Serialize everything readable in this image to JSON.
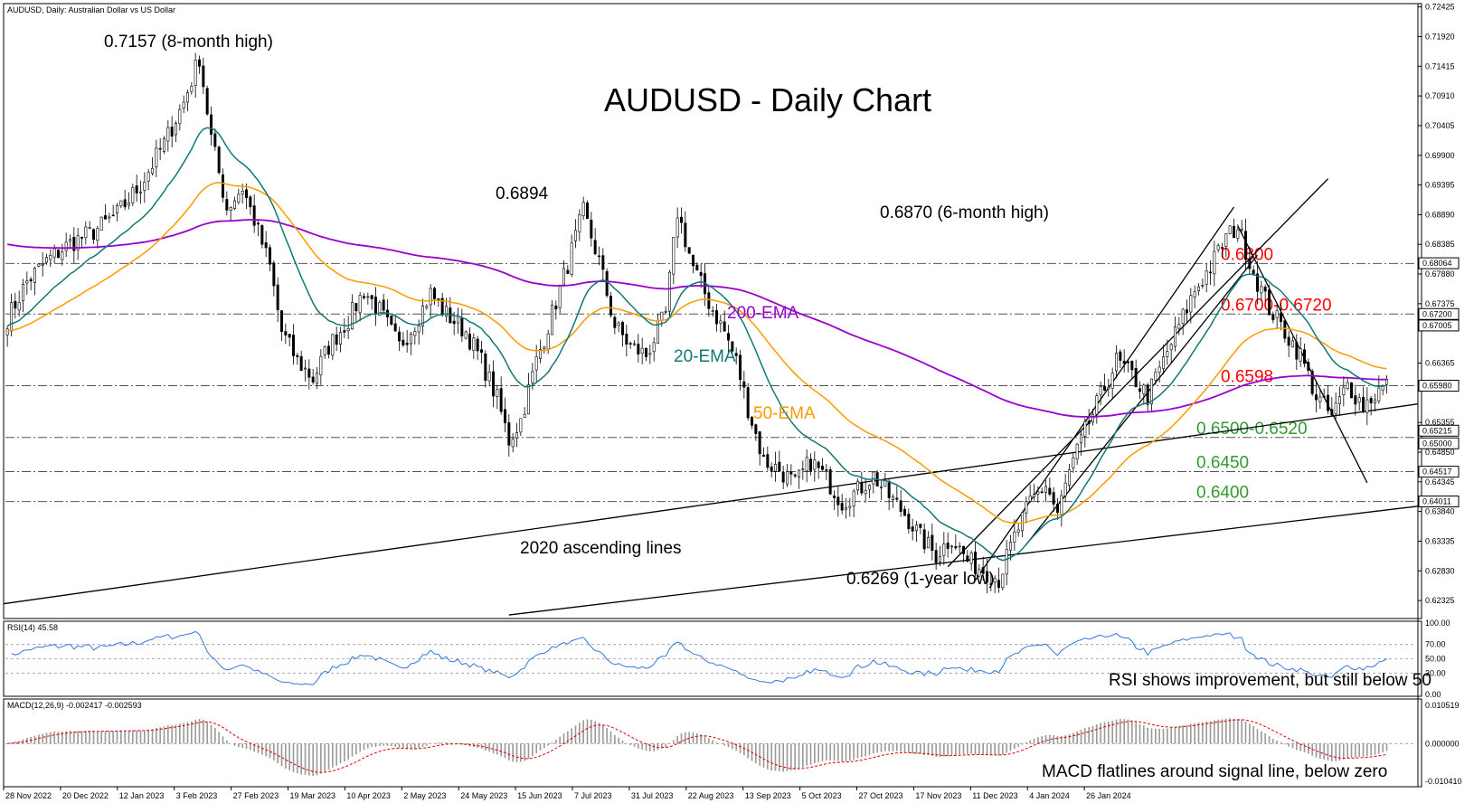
{
  "chart_data": {
    "type": "candlestick",
    "header_label": "AUDUSD, Daily:  Australian Dollar vs US Dollar",
    "title": "AUDUSD -  Daily Chart",
    "x_tick_labels": [
      "28 Nov 2022",
      "20 Dec 2022",
      "12 Jan 2023",
      "3 Feb 2023",
      "27 Feb 2023",
      "19 Mar 2023",
      "10 Apr 2023",
      "2 May 2023",
      "24 May 2023",
      "15 Jun 2023",
      "7 Jul 2023",
      "31 Jul 2023",
      "22 Aug 2023",
      "13 Sep 2023",
      "5 Oct 2023",
      "27 Oct 2023",
      "17 Nov 2023",
      "11 Dec 2023",
      "4 Jan 2024",
      "26 Jan 2024"
    ],
    "y_axis": {
      "ylim": [
        0.6205,
        0.7245
      ],
      "tick_labels": [
        "0.72425",
        "0.71920",
        "0.71415",
        "0.70910",
        "0.70405",
        "0.69900",
        "0.69395",
        "0.68890",
        "0.68385",
        "0.67880",
        "0.67375",
        "0.66365",
        "0.65355",
        "0.64850",
        "0.64345",
        "0.63840",
        "0.63335",
        "0.62830",
        "0.62325"
      ],
      "highlighted_labels": [
        "0.68064",
        "0.67200",
        "0.67005",
        "0.65980",
        "0.65215",
        "0.65000",
        "0.64517",
        "0.64011"
      ]
    },
    "price_path": [
      [
        0,
        0.6712
      ],
      [
        5,
        0.6775
      ],
      [
        10,
        0.681
      ],
      [
        16,
        0.684
      ],
      [
        22,
        0.686
      ],
      [
        28,
        0.689
      ],
      [
        34,
        0.694
      ],
      [
        40,
        0.701
      ],
      [
        45,
        0.708
      ],
      [
        49,
        0.7157
      ],
      [
        52,
        0.702
      ],
      [
        56,
        0.69
      ],
      [
        60,
        0.6935
      ],
      [
        63,
        0.688
      ],
      [
        67,
        0.68
      ],
      [
        70,
        0.669
      ],
      [
        74,
        0.664
      ],
      [
        78,
        0.661
      ],
      [
        82,
        0.6665
      ],
      [
        87,
        0.671
      ],
      [
        91,
        0.676
      ],
      [
        95,
        0.6725
      ],
      [
        100,
        0.6665
      ],
      [
        104,
        0.6705
      ],
      [
        108,
        0.6755
      ],
      [
        112,
        0.672
      ],
      [
        117,
        0.669
      ],
      [
        121,
        0.664
      ],
      [
        125,
        0.6575
      ],
      [
        128,
        0.6505
      ],
      [
        131,
        0.654
      ],
      [
        135,
        0.664
      ],
      [
        139,
        0.672
      ],
      [
        143,
        0.6805
      ],
      [
        147,
        0.6894
      ],
      [
        151,
        0.681
      ],
      [
        155,
        0.67
      ],
      [
        159,
        0.6665
      ],
      [
        163,
        0.665
      ],
      [
        168,
        0.672
      ],
      [
        171,
        0.6894
      ],
      [
        175,
        0.68
      ],
      [
        179,
        0.674
      ],
      [
        183,
        0.669
      ],
      [
        186,
        0.664
      ],
      [
        189,
        0.656
      ],
      [
        193,
        0.647
      ],
      [
        197,
        0.6455
      ],
      [
        201,
        0.643
      ],
      [
        205,
        0.647
      ],
      [
        209,
        0.644
      ],
      [
        213,
        0.64
      ],
      [
        217,
        0.642
      ],
      [
        221,
        0.6445
      ],
      [
        225,
        0.641
      ],
      [
        229,
        0.638
      ],
      [
        233,
        0.634
      ],
      [
        237,
        0.631
      ],
      [
        241,
        0.634
      ],
      [
        245,
        0.63
      ],
      [
        249,
        0.6285
      ],
      [
        253,
        0.6269
      ],
      [
        257,
        0.634
      ],
      [
        261,
        0.64
      ],
      [
        265,
        0.643
      ],
      [
        268,
        0.638
      ],
      [
        271,
        0.645
      ],
      [
        275,
        0.652
      ],
      [
        279,
        0.658
      ],
      [
        283,
        0.664
      ],
      [
        287,
        0.6615
      ],
      [
        291,
        0.658
      ],
      [
        295,
        0.664
      ],
      [
        299,
        0.67
      ],
      [
        303,
        0.676
      ],
      [
        307,
        0.68
      ],
      [
        311,
        0.685
      ],
      [
        314,
        0.687
      ],
      [
        318,
        0.679
      ],
      [
        322,
        0.673
      ],
      [
        326,
        0.669
      ],
      [
        330,
        0.665
      ],
      [
        334,
        0.658
      ],
      [
        338,
        0.6545
      ],
      [
        342,
        0.66
      ],
      [
        346,
        0.6565
      ],
      [
        350,
        0.659
      ],
      [
        352,
        0.6598
      ]
    ],
    "annotations": {
      "high_8m": "0.7157 (8-month high)",
      "high_jun": "0.6894",
      "high_6m": "0.6870 (6-month high)",
      "low_1y": "0.6269 (1-year low)",
      "ascending_lines": "2020 ascending lines",
      "ema200": "200-EMA",
      "ema20": "20-EMA",
      "ema50": "50-EMA"
    },
    "levels": [
      {
        "label": "0.6800",
        "value": 0.6806,
        "color": "#ff0000"
      },
      {
        "label": "0.6700-0.6720",
        "value": 0.672,
        "color": "#ff0000"
      },
      {
        "label": "0.6598",
        "value": 0.6598,
        "color": "#ff0000"
      },
      {
        "label": "0.6500-0.6520",
        "value": 0.651,
        "color": "#339933"
      },
      {
        "label": "0.6450",
        "value": 0.6452,
        "color": "#339933"
      },
      {
        "label": "0.6400",
        "value": 0.6401,
        "color": "#339933"
      }
    ],
    "rsi": {
      "label": "RSI(14) 45.58",
      "tick_labels": [
        "100.00",
        "70.00",
        "50.00",
        "30.00",
        "0.00"
      ],
      "note": "RSI shows improvement, but still below 50"
    },
    "macd": {
      "label": "MACD(12,26,9) -0.002417 -0.002593",
      "tick_labels": [
        "0.010519",
        "0.000000",
        "-0.010410"
      ],
      "note": "MACD flatlines around signal line, below zero"
    },
    "colors": {
      "ema20": "#117777",
      "ema50": "#ff9900",
      "ema200": "#9900cc",
      "rsi_line": "#3377dd",
      "macd_signal": "#dd0000",
      "hist": "#999999",
      "bull": "#ffffff",
      "bear": "#000000"
    }
  }
}
